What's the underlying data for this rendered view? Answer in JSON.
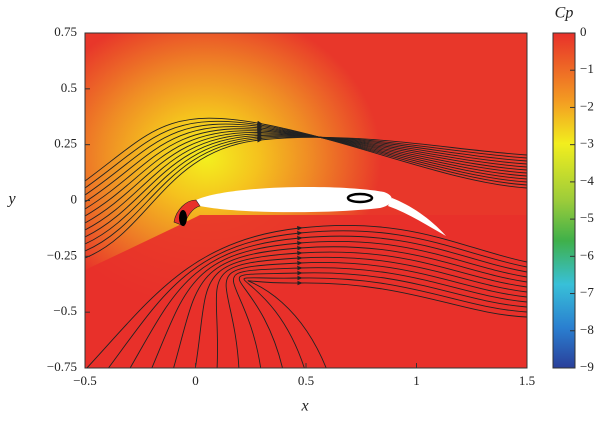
{
  "chart_data": {
    "type": "contour",
    "xlabel": "x",
    "ylabel": "y",
    "xlim": [
      -0.5,
      1.5
    ],
    "ylim": [
      -0.75,
      0.75
    ],
    "xticks": [
      {
        "value": -0.5,
        "label": "−0.5"
      },
      0,
      0.5,
      1,
      1.5
    ],
    "yticks": [
      {
        "value": -0.75,
        "label": "−0.75"
      },
      {
        "value": -0.5,
        "label": "−0.5"
      },
      {
        "value": -0.25,
        "label": "−0.25"
      },
      0,
      0.25,
      0.5,
      0.75
    ],
    "colorbar": {
      "title": "Cp",
      "lim": [
        -9,
        0
      ],
      "ticks": [
        0,
        {
          "value": -1,
          "label": "−1"
        },
        {
          "value": -2,
          "label": "−2"
        },
        {
          "value": -3,
          "label": "−3"
        },
        {
          "value": -4,
          "label": "−4"
        },
        {
          "value": -5,
          "label": "−5"
        },
        {
          "value": -6,
          "label": "−6"
        },
        {
          "value": -7,
          "label": "−7"
        },
        {
          "value": -8,
          "label": "−8"
        },
        {
          "value": -9,
          "label": "−9"
        }
      ]
    }
  }
}
